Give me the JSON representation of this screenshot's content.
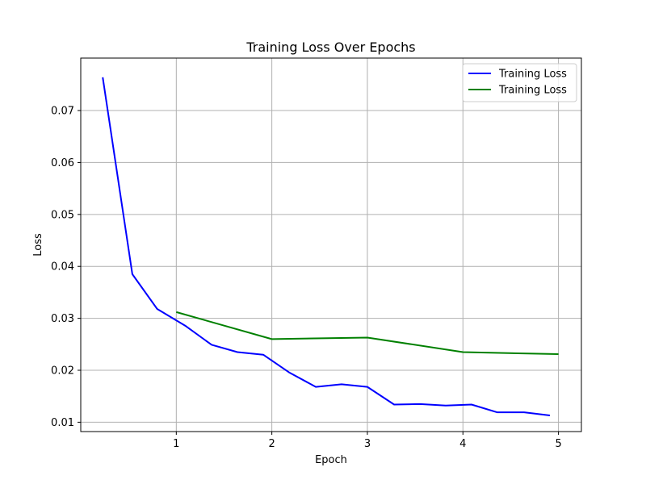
{
  "chart_data": {
    "type": "line",
    "title": "Training Loss Over Epochs",
    "xlabel": "Epoch",
    "ylabel": "Loss",
    "xlim": [
      0.0,
      5.24
    ],
    "ylim": [
      0.0082,
      0.0801
    ],
    "xticks": [
      1,
      2,
      3,
      4,
      5
    ],
    "xtick_labels": [
      "1",
      "2",
      "3",
      "4",
      "5"
    ],
    "yticks": [
      0.01,
      0.02,
      0.03,
      0.04,
      0.05,
      0.06,
      0.07
    ],
    "ytick_labels": [
      "0.01",
      "0.02",
      "0.03",
      "0.04",
      "0.05",
      "0.06",
      "0.07"
    ],
    "grid": true,
    "legend": {
      "placement": "top-right"
    },
    "series": [
      {
        "name": "Training Loss",
        "color": "#0000ff",
        "x": [
          0.23,
          0.54,
          0.8,
          1.1,
          1.37,
          1.64,
          1.91,
          2.18,
          2.46,
          2.73,
          3.0,
          3.28,
          3.55,
          3.82,
          4.09,
          4.36,
          4.64,
          4.91
        ],
        "y": [
          0.0764,
          0.0385,
          0.0318,
          0.0285,
          0.0249,
          0.0235,
          0.023,
          0.0196,
          0.0168,
          0.0173,
          0.0168,
          0.0134,
          0.0135,
          0.0132,
          0.0134,
          0.0119,
          0.0119,
          0.0113
        ]
      },
      {
        "name": "Training Loss",
        "color": "#008000",
        "x": [
          1,
          2,
          3,
          4,
          5
        ],
        "y": [
          0.0312,
          0.026,
          0.0263,
          0.0235,
          0.0231
        ]
      }
    ]
  }
}
